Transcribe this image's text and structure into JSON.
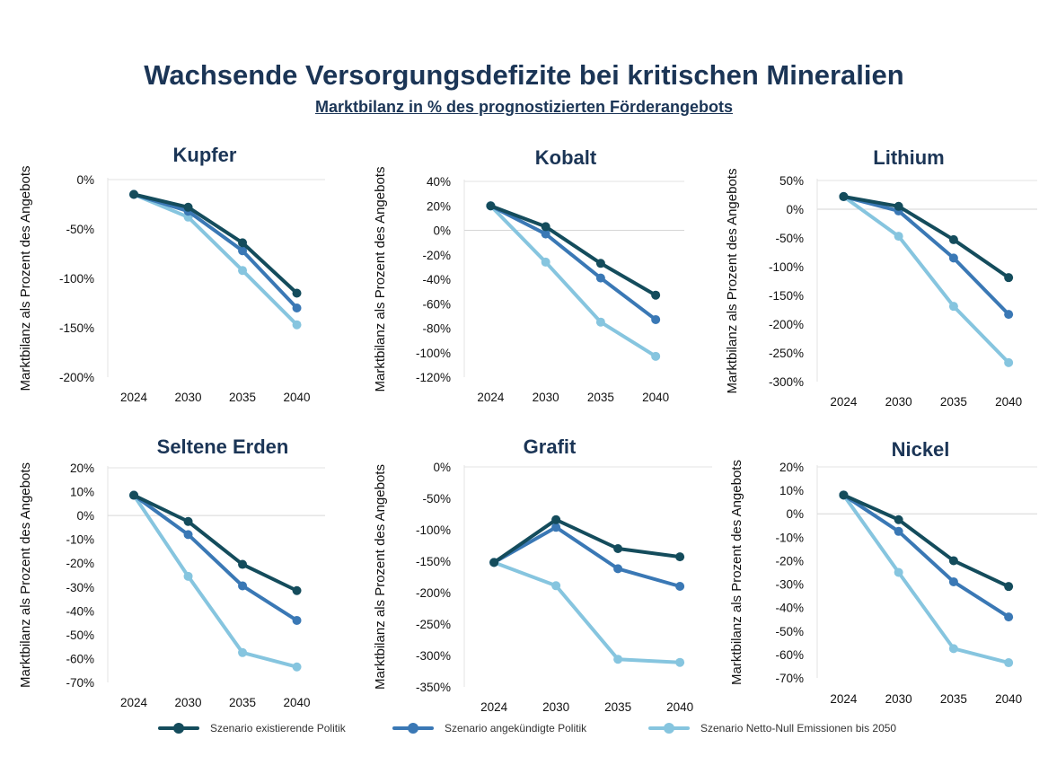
{
  "title": "Wachsende Versorgungsdefizite bei kritischen Mineralien",
  "subtitle": "Marktbilanz in % des prognostizierten Förderangebots",
  "legend": [
    {
      "label": "Szenario existierende Politik",
      "color": "#144c5c"
    },
    {
      "label": "Szenario angekündigte Politik",
      "color": "#3a78b5"
    },
    {
      "label": "Szenario Netto-Null Emissionen bis 2050",
      "color": "#86c5df"
    }
  ],
  "chart_data": [
    {
      "type": "line",
      "title": "Kupfer",
      "xlabel": "",
      "ylabel": "Marktbilanz als Prozent des Angebots",
      "categories": [
        "2024",
        "2030",
        "2035",
        "2040"
      ],
      "ylim": [
        -200,
        0
      ],
      "yticks": [
        0,
        -50,
        -100,
        -150,
        -200
      ],
      "ytick_labels": [
        "0%",
        "-50%",
        "-100%",
        "-150%",
        "-200%"
      ],
      "zero_line": false,
      "series": [
        {
          "name": "Szenario existierende Politik",
          "values": [
            -15,
            -28,
            -64,
            -115
          ]
        },
        {
          "name": "Szenario angekündigte Politik",
          "values": [
            -15,
            -32,
            -72,
            -130
          ]
        },
        {
          "name": "Szenario Netto-Null Emissionen bis 2050",
          "values": [
            -15,
            -38,
            -92,
            -147
          ]
        }
      ]
    },
    {
      "type": "line",
      "title": "Kobalt",
      "xlabel": "",
      "ylabel": "Marktbilanz als Prozent des Angebots",
      "categories": [
        "2024",
        "2030",
        "2035",
        "2040"
      ],
      "ylim": [
        -120,
        40
      ],
      "yticks": [
        40,
        20,
        0,
        -20,
        -40,
        -60,
        -80,
        -100,
        -120
      ],
      "ytick_labels": [
        "40%",
        "20%",
        "0%",
        "-20%",
        "-40%",
        "-60%",
        "-80%",
        "-100%",
        "-120%"
      ],
      "zero_line": true,
      "series": [
        {
          "name": "Szenario existierende Politik",
          "values": [
            20,
            3,
            -27,
            -53
          ]
        },
        {
          "name": "Szenario angekündigte Politik",
          "values": [
            20,
            -3,
            -39,
            -73
          ]
        },
        {
          "name": "Szenario Netto-Null Emissionen bis 2050",
          "values": [
            20,
            -26,
            -75,
            -103
          ]
        }
      ]
    },
    {
      "type": "line",
      "title": "Lithium",
      "xlabel": "",
      "ylabel": "Marktbilanz als Prozent des Angebots",
      "categories": [
        "2024",
        "2030",
        "2035",
        "2040"
      ],
      "ylim": [
        -300,
        50
      ],
      "yticks": [
        50,
        0,
        -50,
        -100,
        -150,
        -200,
        -250,
        -300
      ],
      "ytick_labels": [
        "50%",
        "0%",
        "-50%",
        "-100%",
        "-150%",
        "-200%",
        "-250%",
        "-300%"
      ],
      "zero_line": true,
      "series": [
        {
          "name": "Szenario existierende Politik",
          "values": [
            22,
            5,
            -53,
            -119
          ]
        },
        {
          "name": "Szenario angekündigte Politik",
          "values": [
            22,
            -3,
            -85,
            -183
          ]
        },
        {
          "name": "Szenario Netto-Null Emissionen bis 2050",
          "values": [
            22,
            -47,
            -169,
            -267
          ]
        }
      ]
    },
    {
      "type": "line",
      "title": "Seltene Erden",
      "xlabel": "",
      "ylabel": "Marktbilanz als Prozent des Angebots",
      "categories": [
        "2024",
        "2030",
        "2035",
        "2040"
      ],
      "ylim": [
        -70,
        20
      ],
      "yticks": [
        20,
        10,
        0,
        -10,
        -20,
        -30,
        -40,
        -50,
        -60,
        -70
      ],
      "ytick_labels": [
        "20%",
        "10%",
        "0%",
        "-10%",
        "-20%",
        "-30%",
        "-40%",
        "-50%",
        "-60%",
        "-70%"
      ],
      "zero_line": true,
      "series": [
        {
          "name": "Szenario existierende Politik",
          "values": [
            8.5,
            -2.5,
            -20.5,
            -31.5
          ]
        },
        {
          "name": "Szenario angekündigte Politik",
          "values": [
            8.5,
            -8,
            -29.5,
            -44
          ]
        },
        {
          "name": "Szenario Netto-Null Emissionen bis 2050",
          "values": [
            8.5,
            -25.5,
            -57.5,
            -63.5
          ]
        }
      ]
    },
    {
      "type": "line",
      "title": "Grafit",
      "xlabel": "",
      "ylabel": "Marktbilanz als Prozent des Angebots",
      "categories": [
        "2024",
        "2030",
        "2035",
        "2040"
      ],
      "ylim": [
        -350,
        0
      ],
      "yticks": [
        0,
        -50,
        -100,
        -150,
        -200,
        -250,
        -300,
        -350
      ],
      "ytick_labels": [
        "0%",
        "-50%",
        "-100%",
        "-150%",
        "-200%",
        "-250%",
        "-300%",
        "-350%"
      ],
      "zero_line": false,
      "series": [
        {
          "name": "Szenario existierende Politik",
          "values": [
            -152,
            -84,
            -130,
            -143
          ]
        },
        {
          "name": "Szenario angekündigte Politik",
          "values": [
            -152,
            -96,
            -162,
            -190
          ]
        },
        {
          "name": "Szenario Netto-Null Emissionen bis 2050",
          "values": [
            -152,
            -189,
            -306,
            -311
          ]
        }
      ]
    },
    {
      "type": "line",
      "title": "Nickel",
      "xlabel": "",
      "ylabel": "Marktbilanz als Prozent des Angebots",
      "categories": [
        "2024",
        "2030",
        "2035",
        "2040"
      ],
      "ylim": [
        -70,
        20
      ],
      "yticks": [
        20,
        10,
        0,
        -10,
        -20,
        -30,
        -40,
        -50,
        -60,
        -70
      ],
      "ytick_labels": [
        "20%",
        "10%",
        "0%",
        "-10%",
        "-20%",
        "-30%",
        "-40%",
        "-50%",
        "-60%",
        "-70%"
      ],
      "zero_line": true,
      "series": [
        {
          "name": "Szenario existierende Politik",
          "values": [
            8,
            -2.5,
            -20,
            -31
          ]
        },
        {
          "name": "Szenario angekündigte Politik",
          "values": [
            8,
            -7.5,
            -29,
            -44
          ]
        },
        {
          "name": "Szenario Netto-Null Emissionen bis 2050",
          "values": [
            8,
            -25,
            -57.5,
            -63.5
          ]
        }
      ]
    }
  ]
}
